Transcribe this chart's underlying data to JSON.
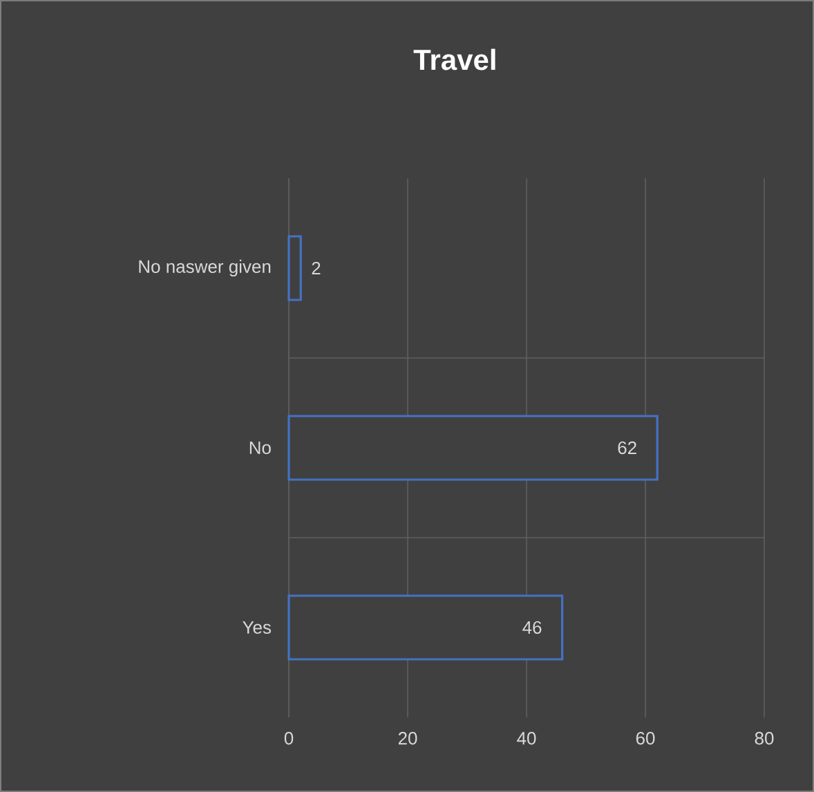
{
  "chart_data": {
    "type": "bar",
    "orientation": "horizontal",
    "title": "Travel",
    "categories": [
      "No naswer given",
      "No",
      "Yes"
    ],
    "values": [
      2,
      62,
      46
    ],
    "color": "#4472c4",
    "xlim": [
      0,
      80
    ],
    "xticks": [
      0,
      20,
      40,
      60,
      80
    ],
    "grid": true,
    "data_labels": true
  }
}
